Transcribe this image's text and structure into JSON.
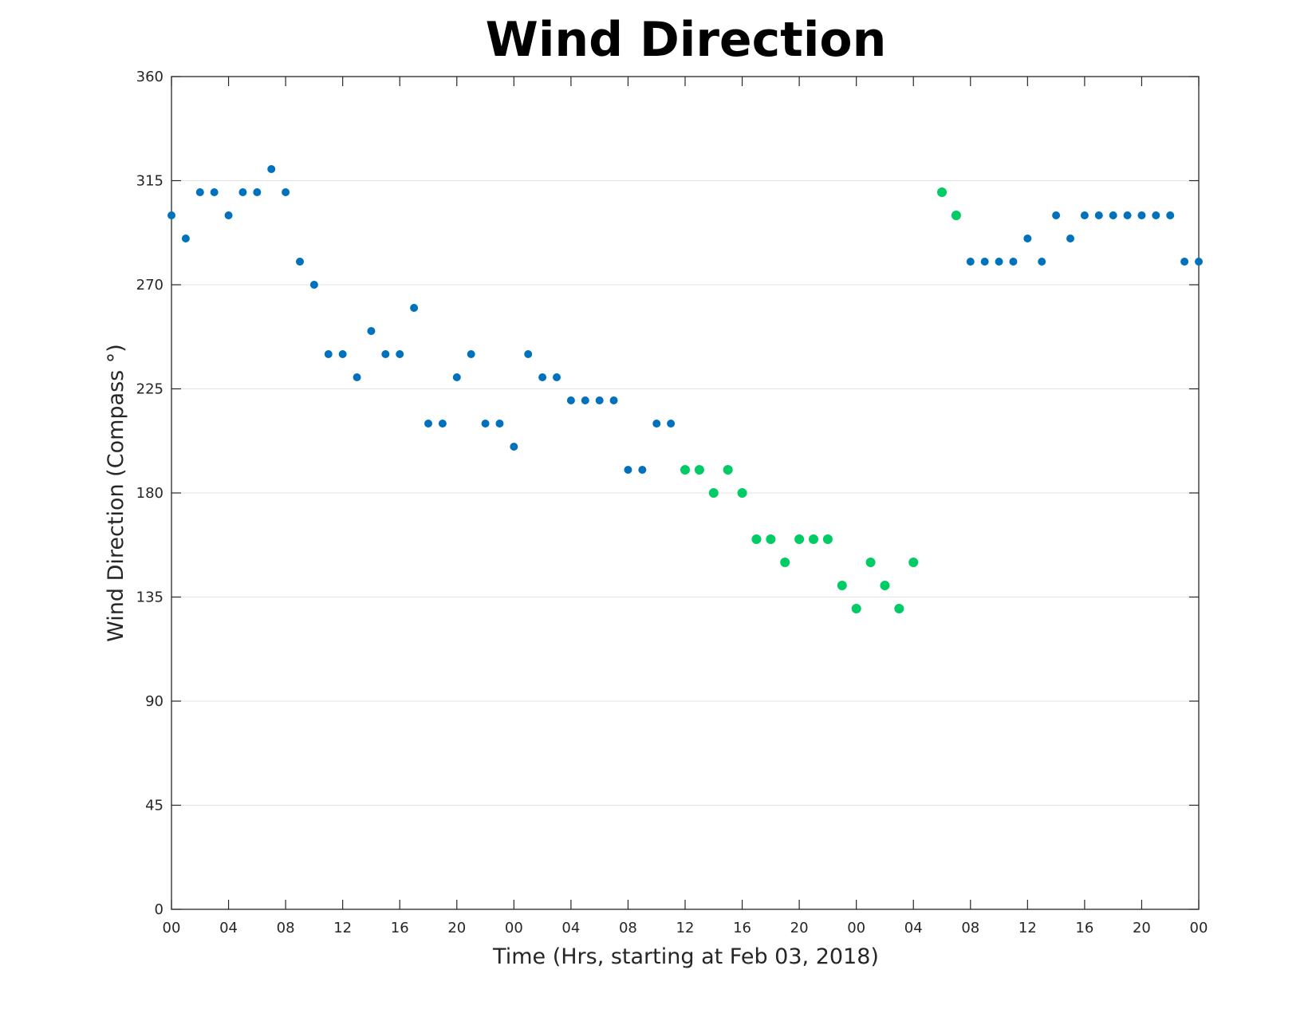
{
  "chart_data": {
    "type": "scatter",
    "title": "Wind Direction",
    "xlabel": "Time (Hrs, starting at Feb 03, 2018)",
    "ylabel": "Wind Direction (Compass °)",
    "xlim": [
      0,
      72
    ],
    "ylim": [
      0,
      360
    ],
    "y_ticks": [
      0,
      45,
      90,
      135,
      180,
      225,
      270,
      315,
      360
    ],
    "x_tick_labels": [
      "00",
      "04",
      "08",
      "12",
      "16",
      "20",
      "00",
      "04",
      "08",
      "12",
      "16",
      "20",
      "00",
      "04",
      "08",
      "12",
      "16",
      "20",
      "00"
    ],
    "x_tick_hours": [
      0,
      4,
      8,
      12,
      16,
      20,
      24,
      28,
      32,
      36,
      40,
      44,
      48,
      52,
      56,
      60,
      64,
      68,
      72
    ],
    "grid": "horizontal",
    "series": [
      {
        "color": "#0072bd",
        "points": [
          [
            0,
            300
          ],
          [
            1,
            290
          ],
          [
            2,
            310
          ],
          [
            3,
            310
          ],
          [
            4,
            300
          ],
          [
            5,
            310
          ],
          [
            6,
            310
          ],
          [
            7,
            320
          ],
          [
            8,
            310
          ],
          [
            9,
            280
          ],
          [
            10,
            270
          ],
          [
            11,
            240
          ],
          [
            12,
            240
          ],
          [
            13,
            230
          ],
          [
            14,
            250
          ],
          [
            15,
            240
          ],
          [
            16,
            240
          ],
          [
            17,
            260
          ],
          [
            18,
            210
          ],
          [
            19,
            210
          ],
          [
            20,
            230
          ],
          [
            21,
            240
          ],
          [
            22,
            210
          ],
          [
            23,
            210
          ],
          [
            24,
            200
          ],
          [
            25,
            240
          ],
          [
            26,
            230
          ],
          [
            27,
            230
          ],
          [
            28,
            220
          ],
          [
            29,
            220
          ],
          [
            30,
            220
          ],
          [
            31,
            220
          ],
          [
            32,
            190
          ],
          [
            33,
            190
          ],
          [
            34,
            210
          ],
          [
            35,
            210
          ],
          [
            56,
            280
          ],
          [
            57,
            280
          ],
          [
            58,
            280
          ],
          [
            59,
            280
          ],
          [
            60,
            290
          ],
          [
            61,
            280
          ],
          [
            62,
            300
          ],
          [
            63,
            290
          ],
          [
            64,
            300
          ],
          [
            65,
            300
          ],
          [
            66,
            300
          ],
          [
            67,
            300
          ],
          [
            68,
            300
          ],
          [
            69,
            300
          ],
          [
            70,
            300
          ],
          [
            71,
            280
          ],
          [
            72,
            280
          ]
        ]
      },
      {
        "color": "#00cc66",
        "points": [
          [
            36,
            190
          ],
          [
            37,
            190
          ],
          [
            38,
            180
          ],
          [
            39,
            190
          ],
          [
            40,
            180
          ],
          [
            41,
            160
          ],
          [
            42,
            160
          ],
          [
            43,
            150
          ],
          [
            44,
            160
          ],
          [
            45,
            160
          ],
          [
            46,
            160
          ],
          [
            47,
            140
          ],
          [
            48,
            130
          ],
          [
            49,
            150
          ],
          [
            50,
            140
          ],
          [
            51,
            130
          ],
          [
            52,
            150
          ],
          [
            54,
            310
          ],
          [
            55,
            300
          ]
        ]
      }
    ]
  }
}
